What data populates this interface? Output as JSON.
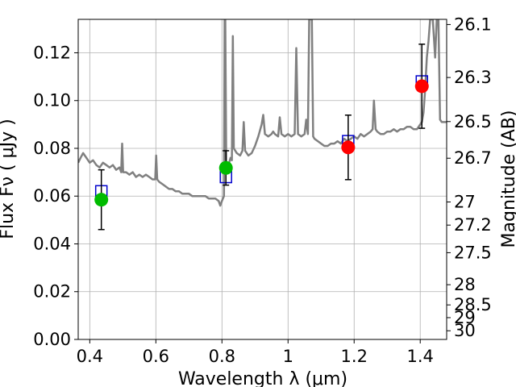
{
  "chart_data": {
    "type": "scatter",
    "title": "",
    "xlabel": "Wavelength  λ (μm)",
    "ylabel": "Flux  Fν  ( μJy )",
    "y2label": "Magnitude (AB)",
    "xlim": [
      0.365,
      1.48
    ],
    "ylim": [
      0.0,
      0.134
    ],
    "grid": true,
    "x_ticks": [
      {
        "value": 0.4,
        "label": "0.4"
      },
      {
        "value": 0.6,
        "label": "0.6"
      },
      {
        "value": 0.8,
        "label": "0.8"
      },
      {
        "value": 1.0,
        "label": "1"
      },
      {
        "value": 1.2,
        "label": "1.2"
      },
      {
        "value": 1.4,
        "label": "1.4"
      }
    ],
    "y_ticks": [
      {
        "value": 0.0,
        "label": "0.00"
      },
      {
        "value": 0.02,
        "label": "0.02"
      },
      {
        "value": 0.04,
        "label": "0.04"
      },
      {
        "value": 0.06,
        "label": "0.06"
      },
      {
        "value": 0.08,
        "label": "0.08"
      },
      {
        "value": 0.1,
        "label": "0.10"
      },
      {
        "value": 0.12,
        "label": "0.12"
      }
    ],
    "y2_ticks": [
      {
        "value": 26.1,
        "label": "26.1"
      },
      {
        "value": 26.3,
        "label": "26.3"
      },
      {
        "value": 26.5,
        "label": "26.5"
      },
      {
        "value": 26.7,
        "label": "26.7"
      },
      {
        "value": 27.0,
        "label": "27"
      },
      {
        "value": 27.2,
        "label": "27.2"
      },
      {
        "value": 27.5,
        "label": "27.5"
      },
      {
        "value": 28.0,
        "label": "28"
      },
      {
        "value": 28.5,
        "label": "28.5"
      },
      {
        "value": 29.0,
        "label": "29"
      },
      {
        "value": 30.0,
        "label": "30"
      }
    ],
    "spectrum": {
      "color": "#808080",
      "points": [
        [
          0.365,
          0.074
        ],
        [
          0.372,
          0.076
        ],
        [
          0.38,
          0.078
        ],
        [
          0.39,
          0.076
        ],
        [
          0.4,
          0.074
        ],
        [
          0.41,
          0.075
        ],
        [
          0.42,
          0.073
        ],
        [
          0.43,
          0.072
        ],
        [
          0.44,
          0.074
        ],
        [
          0.45,
          0.073
        ],
        [
          0.46,
          0.072
        ],
        [
          0.47,
          0.073
        ],
        [
          0.48,
          0.071
        ],
        [
          0.49,
          0.072
        ],
        [
          0.495,
          0.07
        ],
        [
          0.498,
          0.082
        ],
        [
          0.501,
          0.07
        ],
        [
          0.51,
          0.07
        ],
        [
          0.52,
          0.069
        ],
        [
          0.53,
          0.07
        ],
        [
          0.54,
          0.068
        ],
        [
          0.55,
          0.069
        ],
        [
          0.56,
          0.068
        ],
        [
          0.57,
          0.069
        ],
        [
          0.58,
          0.068
        ],
        [
          0.59,
          0.067
        ],
        [
          0.598,
          0.067
        ],
        [
          0.601,
          0.077
        ],
        [
          0.604,
          0.067
        ],
        [
          0.61,
          0.066
        ],
        [
          0.62,
          0.065
        ],
        [
          0.63,
          0.064
        ],
        [
          0.64,
          0.063
        ],
        [
          0.65,
          0.063
        ],
        [
          0.66,
          0.062
        ],
        [
          0.67,
          0.062
        ],
        [
          0.68,
          0.061
        ],
        [
          0.69,
          0.061
        ],
        [
          0.7,
          0.061
        ],
        [
          0.71,
          0.06
        ],
        [
          0.72,
          0.06
        ],
        [
          0.73,
          0.06
        ],
        [
          0.74,
          0.06
        ],
        [
          0.75,
          0.06
        ],
        [
          0.76,
          0.059
        ],
        [
          0.77,
          0.059
        ],
        [
          0.78,
          0.059
        ],
        [
          0.79,
          0.058
        ],
        [
          0.795,
          0.056
        ],
        [
          0.8,
          0.058
        ],
        [
          0.806,
          0.06
        ],
        [
          0.808,
          0.134
        ],
        [
          0.81,
          0.134
        ],
        [
          0.813,
          0.074
        ],
        [
          0.82,
          0.073
        ],
        [
          0.826,
          0.076
        ],
        [
          0.83,
          0.075
        ],
        [
          0.833,
          0.127
        ],
        [
          0.836,
          0.08
        ],
        [
          0.845,
          0.078
        ],
        [
          0.855,
          0.077
        ],
        [
          0.862,
          0.079
        ],
        [
          0.866,
          0.091
        ],
        [
          0.87,
          0.079
        ],
        [
          0.88,
          0.077
        ],
        [
          0.89,
          0.078
        ],
        [
          0.9,
          0.081
        ],
        [
          0.91,
          0.085
        ],
        [
          0.92,
          0.09
        ],
        [
          0.925,
          0.094
        ],
        [
          0.93,
          0.086
        ],
        [
          0.94,
          0.085
        ],
        [
          0.95,
          0.086
        ],
        [
          0.955,
          0.087
        ],
        [
          0.96,
          0.086
        ],
        [
          0.97,
          0.085
        ],
        [
          0.975,
          0.093
        ],
        [
          0.98,
          0.086
        ],
        [
          0.99,
          0.085
        ],
        [
          1.0,
          0.086
        ],
        [
          1.01,
          0.085
        ],
        [
          1.02,
          0.086
        ],
        [
          1.025,
          0.122
        ],
        [
          1.03,
          0.086
        ],
        [
          1.04,
          0.085
        ],
        [
          1.05,
          0.086
        ],
        [
          1.055,
          0.092
        ],
        [
          1.06,
          0.086
        ],
        [
          1.064,
          0.134
        ],
        [
          1.072,
          0.134
        ],
        [
          1.076,
          0.085
        ],
        [
          1.08,
          0.084
        ],
        [
          1.09,
          0.083
        ],
        [
          1.1,
          0.082
        ],
        [
          1.11,
          0.081
        ],
        [
          1.12,
          0.081
        ],
        [
          1.13,
          0.082
        ],
        [
          1.14,
          0.082
        ],
        [
          1.15,
          0.083
        ],
        [
          1.16,
          0.082
        ],
        [
          1.17,
          0.084
        ],
        [
          1.18,
          0.083
        ],
        [
          1.19,
          0.084
        ],
        [
          1.2,
          0.085
        ],
        [
          1.21,
          0.084
        ],
        [
          1.22,
          0.086
        ],
        [
          1.23,
          0.085
        ],
        [
          1.24,
          0.086
        ],
        [
          1.25,
          0.087
        ],
        [
          1.256,
          0.088
        ],
        [
          1.26,
          0.1
        ],
        [
          1.265,
          0.088
        ],
        [
          1.27,
          0.087
        ],
        [
          1.28,
          0.086
        ],
        [
          1.29,
          0.086
        ],
        [
          1.3,
          0.087
        ],
        [
          1.31,
          0.087
        ],
        [
          1.32,
          0.088
        ],
        [
          1.33,
          0.087
        ],
        [
          1.34,
          0.088
        ],
        [
          1.35,
          0.088
        ],
        [
          1.36,
          0.089
        ],
        [
          1.37,
          0.089
        ],
        [
          1.38,
          0.088
        ],
        [
          1.39,
          0.088
        ],
        [
          1.4,
          0.09
        ],
        [
          1.405,
          0.091
        ],
        [
          1.41,
          0.095
        ],
        [
          1.415,
          0.105
        ],
        [
          1.42,
          0.118
        ],
        [
          1.425,
          0.125
        ],
        [
          1.43,
          0.134
        ],
        [
          1.438,
          0.134
        ],
        [
          1.445,
          0.118
        ],
        [
          1.45,
          0.134
        ],
        [
          1.455,
          0.134
        ],
        [
          1.46,
          0.092
        ],
        [
          1.465,
          0.091
        ],
        [
          1.47,
          0.091
        ],
        [
          1.48,
          0.091
        ]
      ]
    },
    "model_points": [
      {
        "x": 0.435,
        "y": 0.062,
        "color": "#0000cc"
      },
      {
        "x": 0.812,
        "y": 0.068,
        "color": "#0000cc"
      },
      {
        "x": 1.182,
        "y": 0.083,
        "color": "#0000cc"
      },
      {
        "x": 1.405,
        "y": 0.108,
        "color": "#0000cc"
      }
    ],
    "observed": [
      {
        "x": 0.435,
        "y": 0.0585,
        "yerr": 0.0125,
        "color": "#00bb00"
      },
      {
        "x": 0.812,
        "y": 0.0718,
        "yerr": 0.0072,
        "color": "#00bb00"
      },
      {
        "x": 1.182,
        "y": 0.0804,
        "yerr": 0.0135,
        "color": "#ff0000"
      },
      {
        "x": 1.405,
        "y": 0.106,
        "yerr": 0.0176,
        "color": "#ff0000"
      }
    ]
  }
}
